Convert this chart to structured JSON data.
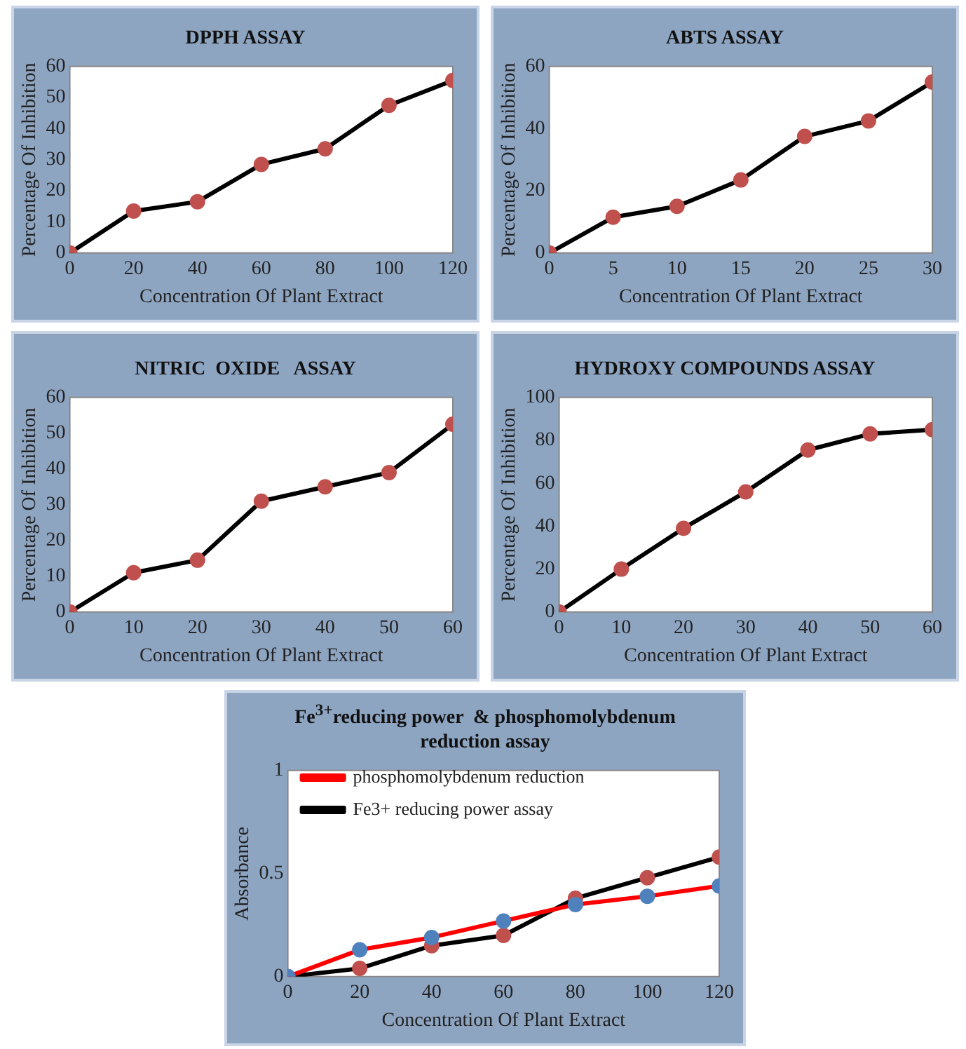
{
  "chart_data": [
    {
      "type": "line",
      "title": "DPPH ASSAY",
      "xlabel": "Concentration Of Plant Extract",
      "ylabel": "Percentage Of Inhibition",
      "x": [
        0,
        20,
        40,
        60,
        80,
        100,
        120
      ],
      "xlim": [
        0,
        120
      ],
      "xticks": [
        0,
        20,
        40,
        60,
        80,
        100,
        120
      ],
      "ylim": [
        0,
        60
      ],
      "yticks": [
        0,
        10,
        20,
        30,
        40,
        50,
        60
      ],
      "marker": "circle",
      "series": [
        {
          "color": "#000000",
          "colors": [
            "#c0504d",
            "#c0504d",
            "#c0504d",
            "#c0504d",
            "#c0504d",
            "#c0504d",
            "#c0504d"
          ],
          "values": [
            0,
            13.5,
            16.5,
            28.5,
            33.5,
            47.5,
            55.5
          ]
        }
      ]
    },
    {
      "type": "line",
      "title": "ABTS ASSAY",
      "xlabel": "Concentration Of Plant Extract",
      "ylabel": "Percentage Of Inhibition",
      "x": [
        0,
        5,
        10,
        15,
        20,
        25,
        30
      ],
      "xlim": [
        0,
        30
      ],
      "xticks": [
        0,
        5,
        10,
        15,
        20,
        25,
        30
      ],
      "ylim": [
        0,
        60
      ],
      "yticks": [
        0,
        20,
        40,
        60
      ],
      "marker": "circle",
      "series": [
        {
          "color": "#000000",
          "colors": [
            "#c0504d",
            "#c0504d",
            "#c0504d",
            "#c0504d",
            "#c0504d",
            "#c0504d",
            "#c0504d"
          ],
          "values": [
            0,
            11.5,
            15,
            23.5,
            37.5,
            42.5,
            55
          ]
        }
      ]
    },
    {
      "type": "line",
      "title": "NITRIC  OXIDE   ASSAY",
      "xlabel": "Concentration Of Plant Extract",
      "ylabel": "Percentage Of Inhibition",
      "x": [
        0,
        10,
        20,
        30,
        40,
        50,
        60
      ],
      "xlim": [
        0,
        60
      ],
      "xticks": [
        0,
        10,
        20,
        30,
        40,
        50,
        60
      ],
      "ylim": [
        0,
        60
      ],
      "yticks": [
        0,
        10,
        20,
        30,
        40,
        50,
        60
      ],
      "marker": "circle",
      "series": [
        {
          "color": "#000000",
          "colors": [
            "#c0504d",
            "#c0504d",
            "#c0504d",
            "#c0504d",
            "#c0504d",
            "#c0504d",
            "#c0504d"
          ],
          "values": [
            0,
            11,
            14.5,
            31,
            35,
            39,
            52.5
          ]
        }
      ]
    },
    {
      "type": "line",
      "title": "HYDROXY COMPOUNDS ASSAY",
      "xlabel": "Concentration Of Plant Extract",
      "ylabel": "Percentage Of Inhibition",
      "x": [
        0,
        10,
        20,
        30,
        40,
        50,
        60
      ],
      "xlim": [
        0,
        60
      ],
      "xticks": [
        0,
        10,
        20,
        30,
        40,
        50,
        60
      ],
      "ylim": [
        0,
        100
      ],
      "yticks": [
        0,
        20,
        40,
        60,
        80,
        100
      ],
      "marker": "circle",
      "series": [
        {
          "color": "#000000",
          "colors": [
            "#c0504d",
            "#c0504d",
            "#c0504d",
            "#c0504d",
            "#c0504d",
            "#c0504d",
            "#c0504d"
          ],
          "values": [
            0,
            20,
            39,
            56,
            75.5,
            83,
            85
          ]
        }
      ]
    },
    {
      "type": "line",
      "title": "Fe$^{3+}$reducing power  & phosphomolybdenum  reduction assay",
      "xlabel": "Concentration Of Plant Extract",
      "ylabel": "Absorbance",
      "x": [
        0,
        20,
        40,
        60,
        80,
        100,
        120
      ],
      "xlim": [
        0,
        120
      ],
      "xticks": [
        0,
        20,
        40,
        60,
        80,
        100,
        120
      ],
      "ylim": [
        0,
        1
      ],
      "yticks": [
        0,
        0.5,
        1
      ],
      "marker": "circle",
      "legend": "top left",
      "series": [
        {
          "name": "phosphomolybdenum reduction",
          "color": "#ff0000",
          "colors": [
            "#4f81bd",
            "#4f81bd",
            "#4f81bd",
            "#4f81bd",
            "#4f81bd",
            "#4f81bd",
            "#4f81bd"
          ],
          "values": [
            0,
            0.13,
            0.19,
            0.27,
            0.35,
            0.39,
            0.44
          ]
        },
        {
          "name": "Fe3+ reducing power assay",
          "color": "#000000",
          "colors": [
            "#c0504d",
            "#c0504d",
            "#c0504d",
            "#c0504d",
            "#c0504d",
            "#c0504d",
            "#c0504d"
          ],
          "values": [
            0,
            0.04,
            0.15,
            0.2,
            0.38,
            0.48,
            0.58
          ]
        }
      ]
    }
  ]
}
